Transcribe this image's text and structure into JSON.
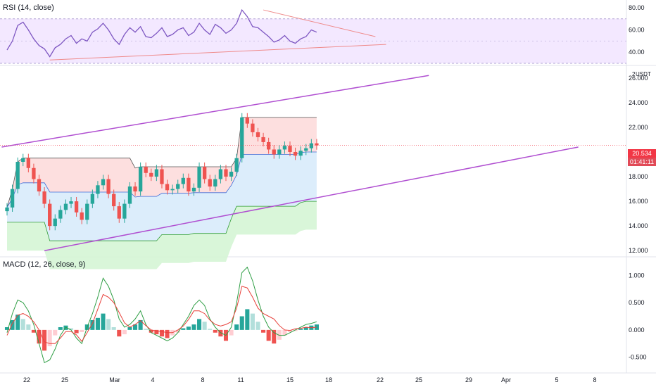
{
  "rsi_pane": {
    "title": "RSI (14, close)",
    "y_ticks": [
      "80.00",
      "60.00",
      "40.00"
    ]
  },
  "price_pane": {
    "unit": "USDT",
    "y_ticks": [
      "26.000",
      "24.000",
      "22.000",
      "20.000",
      "18.000",
      "16.000",
      "14.000",
      "12.000"
    ],
    "last_price": "20.534",
    "countdown": "01:41:11",
    "partial_top_tick": "2"
  },
  "macd_pane": {
    "title": "MACD (12, 26, close, 9)",
    "y_ticks": [
      "1.000",
      "0.500",
      "0.000",
      "-0.500"
    ]
  },
  "x_axis": {
    "labels": [
      "22",
      "25",
      "Mar",
      "4",
      "8",
      "11",
      "15",
      "18",
      "22",
      "25",
      "29",
      "Apr",
      "5",
      "8"
    ]
  },
  "colors": {
    "up": "#26a69a",
    "down": "#ef5350",
    "rsi_line": "#7e57c2",
    "rsi_band": "#f3e8ff",
    "trendline": "#b04fd1",
    "macd_line": "#2e9e44",
    "signal_line": "#e8413b",
    "rsi_trend": "#ef8a8a"
  },
  "chart_data": [
    {
      "type": "line",
      "title": "RSI (14, close)",
      "ylim": [
        30,
        85
      ],
      "levels": [
        70,
        30
      ],
      "x_day": [
        0,
        0.5,
        1,
        1.5,
        2,
        2.5,
        3,
        3.5,
        4,
        4.5,
        5,
        5.5,
        6,
        6.5,
        7,
        7.5,
        8,
        8.5,
        9,
        9.5,
        10,
        10.5,
        11,
        11.5,
        12,
        12.5,
        13,
        13.5,
        14,
        14.5,
        15,
        15.5,
        16,
        16.5,
        17,
        17.5,
        18,
        18.5,
        19,
        19.5,
        20,
        20.5,
        21,
        21.5,
        22,
        22.5,
        23,
        23.5,
        24,
        24.5,
        25,
        25.5,
        26,
        26.5,
        27,
        27.5,
        28,
        28.5,
        29
      ],
      "values": [
        42,
        50,
        64,
        67,
        60,
        52,
        46,
        43,
        36,
        44,
        47,
        52,
        55,
        48,
        52,
        50,
        58,
        61,
        66,
        60,
        52,
        47,
        56,
        62,
        58,
        63,
        54,
        53,
        57,
        62,
        54,
        56,
        60,
        62,
        55,
        58,
        66,
        60,
        56,
        65,
        62,
        57,
        60,
        66,
        78,
        72,
        63,
        62,
        58,
        54,
        49,
        51,
        55,
        50,
        48,
        52,
        54,
        60,
        58
      ],
      "trendlines": [
        {
          "from": [
            4,
            33
          ],
          "to": [
            35.5,
            47
          ],
          "label": ""
        },
        {
          "from": [
            24,
            78
          ],
          "to": [
            34.5,
            54
          ],
          "label": ""
        }
      ]
    },
    {
      "type": "candlestick",
      "unit": "USDT",
      "ylim": [
        11.5,
        26.5
      ],
      "x_day": [
        0,
        0.5,
        1,
        1.5,
        2,
        2.5,
        3,
        3.5,
        4,
        4.5,
        5,
        5.5,
        6,
        6.5,
        7,
        7.5,
        8,
        8.5,
        9,
        9.5,
        10,
        10.5,
        11,
        11.5,
        12,
        12.5,
        13,
        13.5,
        14,
        14.5,
        15,
        15.5,
        16,
        16.5,
        17,
        17.5,
        18,
        18.5,
        19,
        19.5,
        20,
        20.5,
        21,
        21.5,
        22,
        22.5,
        23,
        23.5,
        24,
        24.5,
        25,
        25.5,
        26,
        26.5,
        27,
        27.5,
        28,
        28.5,
        29
      ],
      "close": [
        15.5,
        17.0,
        19.2,
        19.5,
        18.7,
        17.8,
        16.8,
        15.8,
        14.0,
        14.6,
        15.3,
        15.8,
        16.0,
        15.1,
        14.5,
        15.8,
        16.6,
        17.3,
        17.8,
        16.6,
        15.6,
        14.6,
        15.8,
        17.2,
        16.8,
        18.8,
        18.3,
        18.0,
        18.6,
        17.4,
        16.9,
        17.0,
        17.4,
        17.9,
        16.8,
        17.1,
        18.8,
        17.8,
        17.2,
        17.8,
        18.6,
        18.0,
        18.4,
        19.5,
        22.8,
        22.3,
        21.6,
        21.2,
        20.8,
        20.2,
        19.8,
        20.2,
        20.5,
        20.0,
        19.7,
        20.1,
        20.3,
        20.7,
        20.534
      ],
      "last_price": 20.534,
      "trendlines": [
        {
          "from": [
            -0.5,
            20.4
          ],
          "to": [
            39.5,
            26.2
          ],
          "label": ""
        },
        {
          "from": [
            3.5,
            12.0
          ],
          "to": [
            53.5,
            20.4
          ],
          "label": ""
        }
      ],
      "zones_note": "shaded support/resistance bands"
    },
    {
      "type": "bar",
      "title": "MACD (12, 26, close, 9)",
      "ylim": [
        -0.75,
        1.25
      ],
      "x_day": [
        0,
        0.5,
        1,
        1.5,
        2,
        2.5,
        3,
        3.5,
        4,
        4.5,
        5,
        5.5,
        6,
        6.5,
        7,
        7.5,
        8,
        8.5,
        9,
        9.5,
        10,
        10.5,
        11,
        11.5,
        12,
        12.5,
        13,
        13.5,
        14,
        14.5,
        15,
        15.5,
        16,
        16.5,
        17,
        17.5,
        18,
        18.5,
        19,
        19.5,
        20,
        20.5,
        21,
        21.5,
        22,
        22.5,
        23,
        23.5,
        24,
        24.5,
        25,
        25.5,
        26,
        26.5,
        27,
        27.5,
        28,
        28.5,
        29
      ],
      "histogram": [
        0.05,
        0.18,
        0.28,
        0.2,
        0.1,
        -0.05,
        -0.25,
        -0.38,
        -0.3,
        -0.1,
        0.05,
        0.08,
        0.03,
        -0.06,
        -0.04,
        0.1,
        0.18,
        0.22,
        0.3,
        0.2,
        0.05,
        -0.12,
        -0.08,
        0.05,
        0.1,
        0.18,
        0.02,
        -0.05,
        -0.08,
        -0.12,
        -0.15,
        -0.1,
        -0.05,
        0.03,
        0.06,
        0.1,
        0.2,
        0.15,
        0.02,
        -0.05,
        -0.12,
        -0.2,
        -0.1,
        0.1,
        0.25,
        0.38,
        0.3,
        0.15,
        -0.05,
        -0.2,
        -0.25,
        -0.18,
        -0.1,
        -0.04,
        -0.02,
        0.02,
        0.05,
        0.08,
        0.1
      ],
      "series": [
        {
          "name": "",
          "values": [
            -0.05,
            0.3,
            0.55,
            0.5,
            0.35,
            0.1,
            -0.25,
            -0.6,
            -0.55,
            -0.35,
            -0.1,
            0.05,
            0.0,
            -0.15,
            -0.25,
            0.05,
            0.3,
            0.6,
            0.95,
            0.8,
            0.55,
            0.2,
            0.05,
            0.1,
            0.2,
            0.35,
            0.1,
            -0.05,
            -0.1,
            -0.15,
            -0.2,
            -0.15,
            -0.05,
            0.1,
            0.25,
            0.45,
            0.55,
            0.45,
            0.2,
            0.05,
            -0.05,
            -0.1,
            0.05,
            0.5,
            1.05,
            1.15,
            0.9,
            0.55,
            0.25,
            0.05,
            -0.05,
            -0.1,
            -0.1,
            -0.05,
            0.0,
            0.05,
            0.1,
            0.12,
            0.15
          ]
        },
        {
          "name": "",
          "values": [
            -0.1,
            0.12,
            0.27,
            0.3,
            0.25,
            0.15,
            0.0,
            -0.22,
            -0.25,
            -0.25,
            -0.15,
            -0.03,
            -0.03,
            -0.09,
            -0.21,
            -0.05,
            0.12,
            0.38,
            0.65,
            0.6,
            0.5,
            0.32,
            0.13,
            0.05,
            0.1,
            0.17,
            0.08,
            0.0,
            -0.02,
            -0.03,
            -0.05,
            -0.05,
            0.0,
            0.07,
            0.19,
            0.35,
            0.35,
            0.3,
            0.18,
            0.1,
            0.07,
            0.1,
            0.15,
            0.4,
            0.8,
            0.77,
            0.6,
            0.4,
            0.3,
            0.25,
            0.2,
            0.08,
            0.0,
            -0.01,
            0.02,
            0.03,
            0.05,
            0.04,
            0.05
          ]
        }
      ]
    }
  ]
}
